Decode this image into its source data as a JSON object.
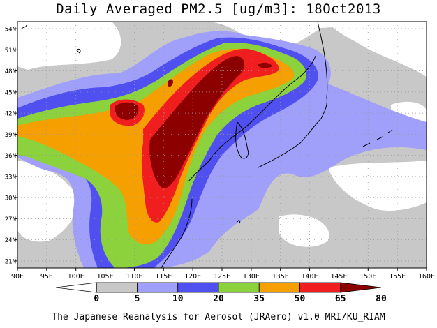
{
  "title": "Daily Averaged PM2.5 [ug/m3]: 18Oct2013",
  "footer": "The Japanese Reanalysis for Aerosol (JRAero) v1.0 MRI/KU_RIAM",
  "map": {
    "lon_range": [
      90,
      160
    ],
    "lat_range": [
      20,
      55
    ],
    "lon_ticks": [
      "90E",
      "95E",
      "100E",
      "105E",
      "110E",
      "115E",
      "120E",
      "125E",
      "130E",
      "135E",
      "140E",
      "145E",
      "150E",
      "155E",
      "160E"
    ],
    "lat_ticks": [
      "54N",
      "51N",
      "48N",
      "45N",
      "42N",
      "39N",
      "36N",
      "33N",
      "30N",
      "27N",
      "24N",
      "21N"
    ],
    "grid": true
  },
  "colorbar": {
    "labels": [
      "0",
      "5",
      "10",
      "20",
      "35",
      "50",
      "65",
      "80"
    ],
    "colors": [
      "#ffffff",
      "#c8c8c8",
      "#a0a0fa",
      "#5050f0",
      "#8cd23c",
      "#f5a000",
      "#f01e1e",
      "#8c0000"
    ]
  }
}
